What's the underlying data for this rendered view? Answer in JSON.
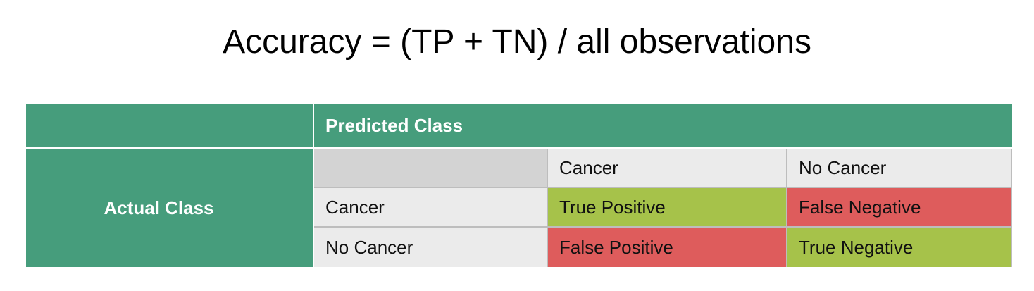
{
  "formula": "Accuracy = (TP + TN) / all observations",
  "matrix": {
    "predicted_header": "Predicted Class",
    "actual_header": "Actual Class",
    "columns": [
      "Cancer",
      "No Cancer"
    ],
    "rows": [
      {
        "label": "Cancer",
        "cells": [
          "True Positive",
          "False Negative"
        ]
      },
      {
        "label": "No Cancer",
        "cells": [
          "False Positive",
          "True Negative"
        ]
      }
    ]
  },
  "colors": {
    "header_green": "#469d7c",
    "true_green": "#a6c24a",
    "false_red": "#de5c5c",
    "label_grey": "#ebebeb",
    "corner_grey": "#d3d3d3"
  }
}
